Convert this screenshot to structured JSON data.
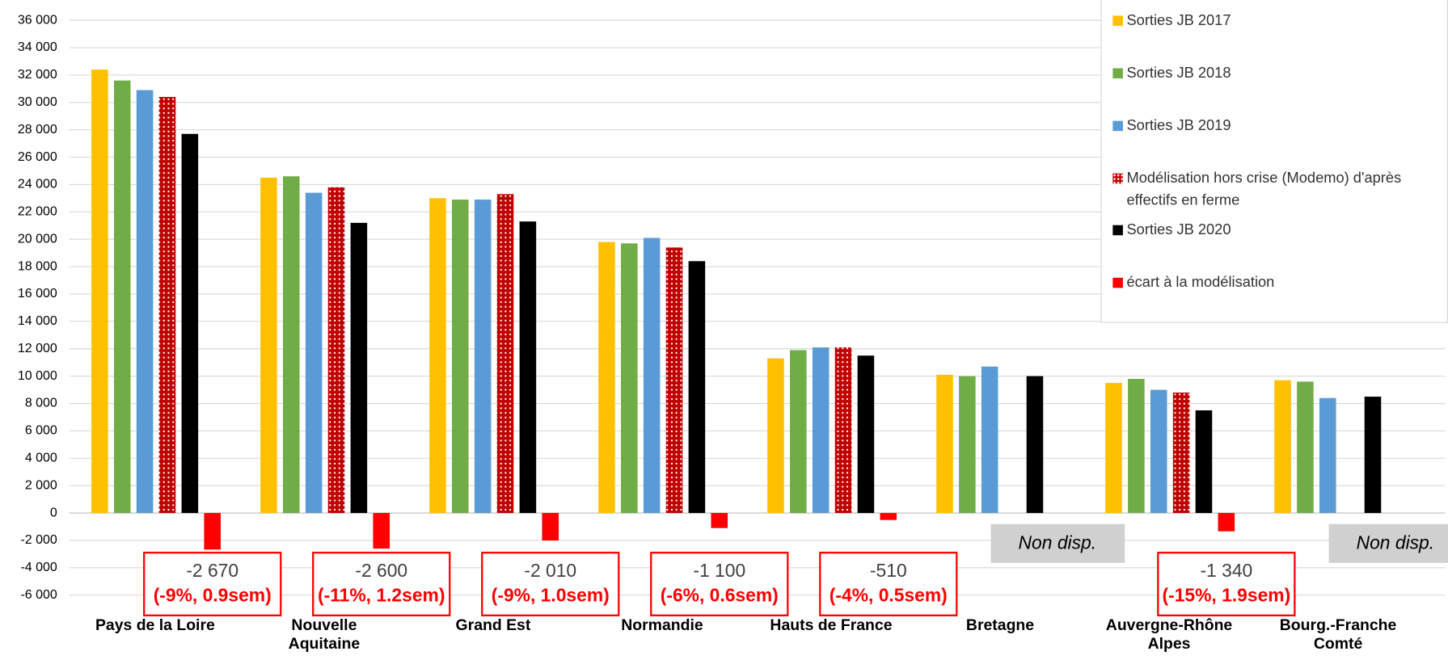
{
  "chart_data": {
    "type": "bar",
    "categories": [
      "Pays de la Loire",
      "Nouvelle Aquitaine",
      "Grand Est",
      "Normandie",
      "Hauts de France",
      "Bretagne",
      "Auvergne-Rhône Alpes",
      "Bourg.-Franche Comté"
    ],
    "series": [
      {
        "name": "Sorties JB 2017",
        "color": "#ffc000",
        "values": [
          32400,
          24500,
          23000,
          19800,
          11300,
          10100,
          9500,
          9700
        ]
      },
      {
        "name": "Sorties JB 2018",
        "color": "#70ad47",
        "values": [
          31600,
          24600,
          22900,
          19700,
          11900,
          10000,
          9800,
          9600
        ]
      },
      {
        "name": "Sorties JB 2019",
        "color": "#5b9bd5",
        "values": [
          30900,
          23400,
          22900,
          20100,
          12100,
          10700,
          9000,
          8400
        ]
      },
      {
        "name": "Modélisation hors crise (Modemo) d'après effectifs en ferme",
        "color": "#c00000",
        "hatch": "dots",
        "values": [
          30400,
          23800,
          23300,
          19400,
          12100,
          null,
          8800,
          null
        ]
      },
      {
        "name": "Sorties JB 2020",
        "color": "#000000",
        "values": [
          27700,
          21200,
          21300,
          18400,
          11500,
          10000,
          7500,
          8500
        ]
      },
      {
        "name": "écart à la modélisation",
        "color": "#ff0000",
        "values": [
          -2670,
          -2600,
          -2010,
          -1100,
          -510,
          null,
          -1340,
          null
        ],
        "value_labels": [
          "-2 670",
          "-2 600",
          "-2 010",
          "-1 100",
          "-510",
          null,
          "-1 340",
          null
        ]
      }
    ],
    "annotations": [
      "(-9%, 0.9sem)",
      "(-11%, 1.2sem)",
      "(-9%, 1.0sem)",
      "(-6%, 0.6sem)",
      "(-4%, 0.5sem)",
      "Non disp.",
      "(-15%, 1.9sem)",
      "Non disp."
    ],
    "ylim": [
      -6000,
      36000
    ],
    "yticks": [
      {
        "value": -6000,
        "label": "-6 000"
      },
      {
        "value": -4000,
        "label": "-4 000"
      },
      {
        "value": -2000,
        "label": "-2 000"
      },
      0,
      {
        "value": 2000,
        "label": "2 000"
      },
      {
        "value": 4000,
        "label": "4 000"
      },
      {
        "value": 6000,
        "label": "6 000"
      },
      {
        "value": 8000,
        "label": "8 000"
      },
      {
        "value": 10000,
        "label": "10 000"
      },
      {
        "value": 12000,
        "label": "12 000"
      },
      {
        "value": 14000,
        "label": "14 000"
      },
      {
        "value": 16000,
        "label": "16 000"
      },
      {
        "value": 18000,
        "label": "18 000"
      },
      {
        "value": 20000,
        "label": "20 000"
      },
      {
        "value": 22000,
        "label": "22 000"
      },
      {
        "value": 24000,
        "label": "24 000"
      },
      {
        "value": 26000,
        "label": "26 000"
      },
      {
        "value": 28000,
        "label": "28 000"
      },
      {
        "value": 30000,
        "label": "30 000"
      },
      {
        "value": 32000,
        "label": "32 000"
      },
      {
        "value": 34000,
        "label": "34 000"
      },
      {
        "value": 36000,
        "label": "36 000"
      }
    ],
    "grid": true,
    "legend": "top-right"
  }
}
